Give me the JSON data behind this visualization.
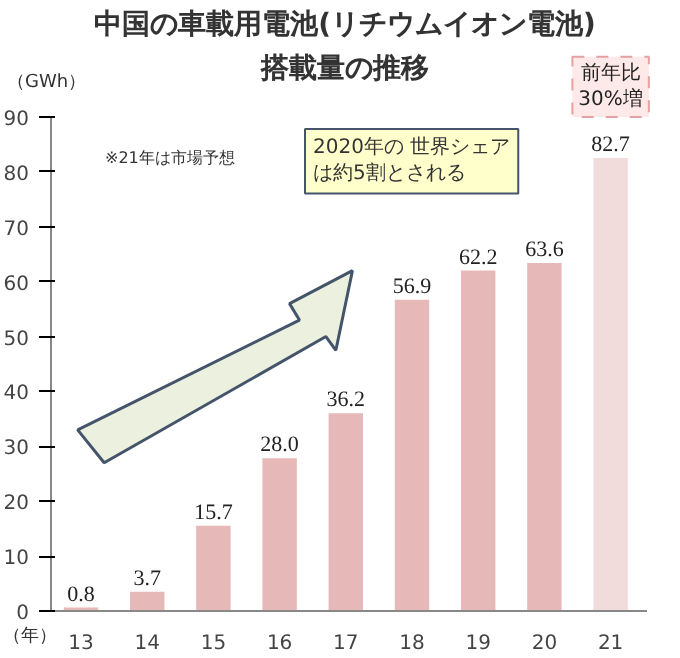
{
  "chart_data": {
    "type": "bar",
    "title": "中国の車載用電池(リチウムイオン電池)\n搭載量の推移",
    "xlabel": "（年）",
    "ylabel": "（GWh）",
    "categories": [
      "13",
      "14",
      "15",
      "16",
      "17",
      "18",
      "19",
      "20",
      "21"
    ],
    "values": [
      0.8,
      3.7,
      15.7,
      28.0,
      36.2,
      56.9,
      62.2,
      63.6,
      82.7
    ],
    "value_labels": [
      "0.8",
      "3.7",
      "15.7",
      "28.0",
      "36.2",
      "56.9",
      "62.2",
      "63.6",
      "82.7"
    ],
    "colors": [
      "#e6b8b7",
      "#e6b8b7",
      "#e6b8b7",
      "#e6b8b7",
      "#e6b8b7",
      "#e6b8b7",
      "#e6b8b7",
      "#e6b8b7",
      "#f2dcdb"
    ],
    "ylim": [
      0,
      90
    ],
    "yticks": [
      0,
      10,
      20,
      30,
      40,
      50,
      60,
      70,
      80,
      90
    ],
    "grid": false,
    "annotations": [
      "※21年は市場予想",
      "2020年の 世界シェアは約5割とされる",
      {
        "text": "前年比\n30%増",
        "x": "21",
        "y": 82.7
      }
    ]
  }
}
